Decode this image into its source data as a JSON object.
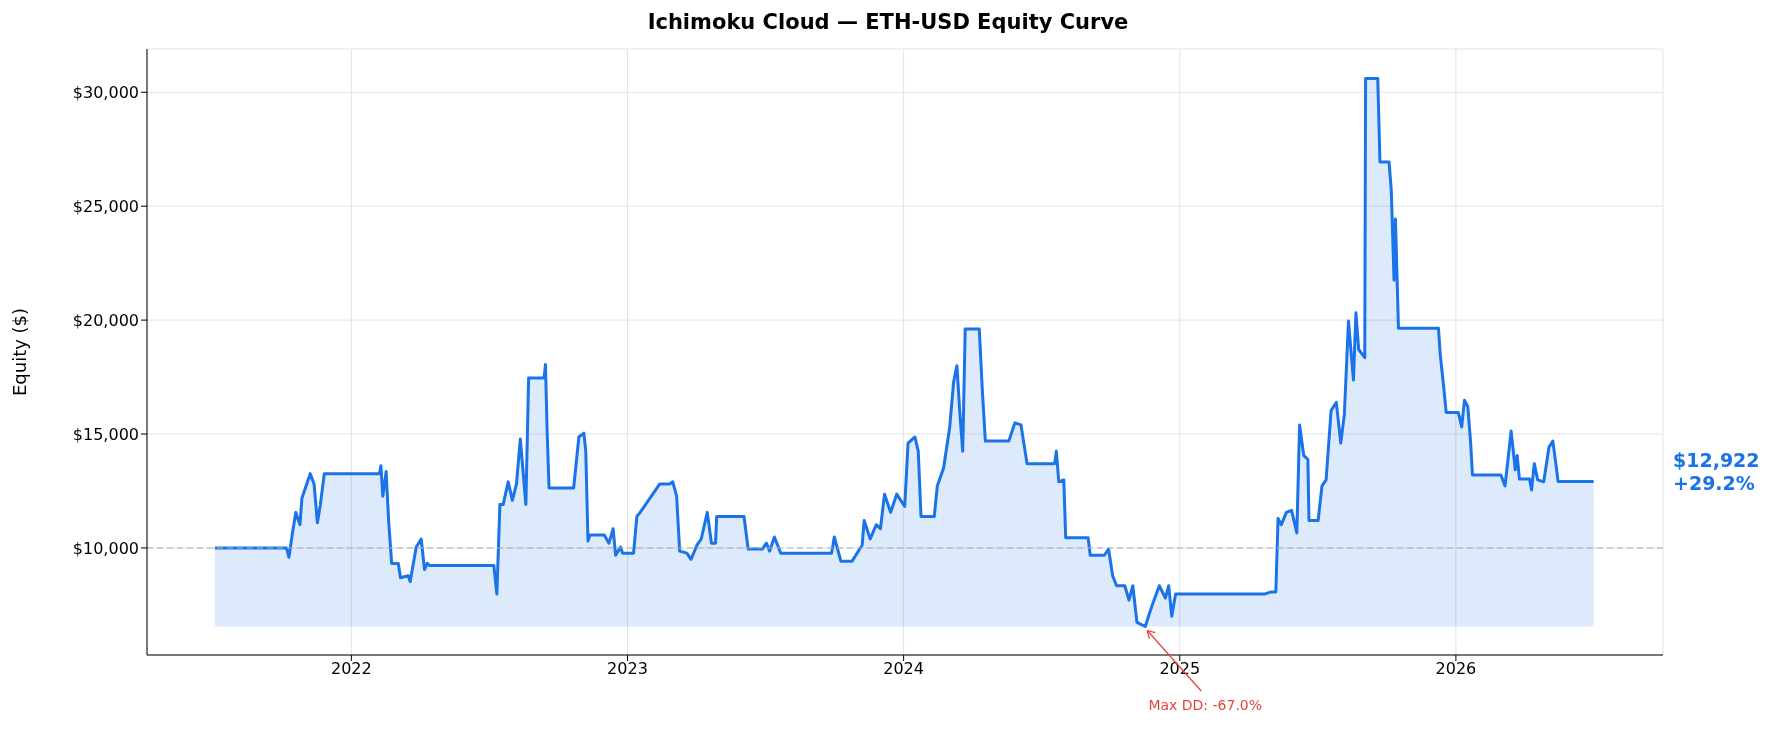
{
  "chart_data": {
    "type": "area",
    "title": "Ichimoku Cloud — ETH-USD Equity Curve",
    "ylabel": "Equity ($)",
    "x": [
      2021.506,
      2021.765,
      2021.774,
      2021.788,
      2021.799,
      2021.814,
      2021.821,
      2021.836,
      2021.851,
      2021.865,
      2021.877,
      2021.888,
      2021.902,
      2022.102,
      2022.107,
      2022.114,
      2022.126,
      2022.135,
      2022.146,
      2022.17,
      2022.178,
      2022.206,
      2022.213,
      2022.235,
      2022.253,
      2022.265,
      2022.275,
      2022.283,
      2022.516,
      2022.527,
      2022.538,
      2022.55,
      2022.568,
      2022.583,
      2022.598,
      2022.612,
      2022.632,
      2022.642,
      2022.698,
      2022.703,
      2022.709,
      2022.716,
      2022.805,
      2022.824,
      2022.842,
      2022.849,
      2022.857,
      2022.864,
      2022.916,
      2022.933,
      2022.948,
      2022.957,
      2022.975,
      2022.982,
      2023.022,
      2023.034,
      2023.046,
      2023.117,
      2023.152,
      2023.164,
      2023.178,
      2023.189,
      2023.215,
      2023.23,
      2023.252,
      2023.267,
      2023.289,
      2023.304,
      2023.319,
      2023.323,
      2023.422,
      2023.437,
      2023.488,
      2023.503,
      2023.515,
      2023.532,
      2023.555,
      2023.739,
      2023.749,
      2023.773,
      2023.813,
      2023.85,
      2023.857,
      2023.879,
      2023.901,
      2023.916,
      2023.931,
      2023.953,
      2023.975,
      2024.004,
      2024.016,
      2024.041,
      2024.053,
      2024.063,
      2024.111,
      2024.122,
      2024.145,
      2024.167,
      2024.181,
      2024.193,
      2024.204,
      2024.214,
      2024.223,
      2024.274,
      2024.285,
      2024.296,
      2024.381,
      2024.403,
      2024.425,
      2024.447,
      2024.547,
      2024.553,
      2024.562,
      2024.58,
      2024.587,
      2024.668,
      2024.676,
      2024.727,
      2024.742,
      2024.757,
      2024.771,
      2024.801,
      2024.816,
      2024.83,
      2024.845,
      2024.875,
      2024.889,
      2024.904,
      2024.926,
      2024.948,
      2024.96,
      2024.971,
      2024.985,
      2025.0,
      2025.309,
      2025.331,
      2025.348,
      2025.356,
      2025.368,
      2025.386,
      2025.405,
      2025.424,
      2025.434,
      2025.449,
      2025.464,
      2025.468,
      2025.501,
      2025.515,
      2025.53,
      2025.548,
      2025.567,
      2025.583,
      2025.596,
      2025.611,
      2025.629,
      2025.638,
      2025.648,
      2025.67,
      2025.673,
      2025.717,
      2025.725,
      2025.758,
      2025.766,
      2025.776,
      2025.781,
      2025.792,
      2025.937,
      2025.943,
      2025.957,
      2025.965,
      2026.009,
      2026.021,
      2026.031,
      2026.043,
      2026.053,
      2026.06,
      2026.163,
      2026.178,
      2026.2,
      2026.215,
      2026.222,
      2026.23,
      2026.267,
      2026.274,
      2026.284,
      2026.296,
      2026.318,
      2026.337,
      2026.351,
      2026.362,
      2026.37,
      2026.499
    ],
    "series": [
      {
        "color": "#1a73e8",
        "values": [
          10000,
          10000,
          9590,
          10750,
          11560,
          11020,
          12180,
          12720,
          13260,
          12810,
          11110,
          11910,
          13260,
          13260,
          13610,
          12270,
          13350,
          11200,
          9320,
          9320,
          8690,
          8780,
          8520,
          10040,
          10390,
          9050,
          9320,
          9230,
          9230,
          7980,
          11910,
          11910,
          12900,
          12090,
          12810,
          14780,
          11910,
          17460,
          17460,
          18050,
          15130,
          12630,
          12630,
          14870,
          15040,
          14240,
          10300,
          10570,
          10570,
          10210,
          10840,
          9680,
          10040,
          9770,
          9770,
          11380,
          11560,
          12810,
          12810,
          12900,
          12270,
          9860,
          9770,
          9500,
          10130,
          10390,
          11560,
          10210,
          10210,
          11380,
          11380,
          9950,
          9950,
          10210,
          9860,
          10480,
          9770,
          9770,
          10480,
          9410,
          9410,
          10130,
          11200,
          10390,
          11020,
          10840,
          12360,
          11560,
          12360,
          11820,
          14600,
          14870,
          14240,
          11380,
          11380,
          12720,
          13520,
          15310,
          17280,
          18000,
          15850,
          14240,
          19610,
          19610,
          16920,
          14690,
          14690,
          15490,
          15400,
          13700,
          13700,
          14240,
          12900,
          12990,
          10450,
          10450,
          9680,
          9680,
          9950,
          8780,
          8340,
          8340,
          7710,
          8340,
          6730,
          6550,
          7080,
          7620,
          8340,
          7800,
          8340,
          7000,
          7980,
          7980,
          7980,
          8070,
          8070,
          11290,
          11020,
          11560,
          11650,
          10660,
          15400,
          14060,
          13880,
          11200,
          11200,
          12720,
          12990,
          16030,
          16390,
          14600,
          15850,
          19960,
          17370,
          20320,
          18710,
          18350,
          30610,
          30610,
          26940,
          26940,
          25690,
          21750,
          24440,
          19640,
          19640,
          18530,
          16920,
          15940,
          15940,
          15310,
          16480,
          16210,
          14690,
          13200,
          13200,
          12720,
          15130,
          13430,
          14060,
          13020,
          13020,
          12540,
          13700,
          12990,
          12900,
          14420,
          14690,
          13700,
          12920,
          12920
        ]
      }
    ],
    "xlim": [
      2021.26,
      2026.75
    ],
    "xticks": [
      2022,
      2023,
      2024,
      2025,
      2026
    ],
    "ylim": [
      5300,
      31900
    ],
    "yticks": [
      {
        "value": 10000,
        "label": "$10,000"
      },
      {
        "value": 15000,
        "label": "$15,000"
      },
      {
        "value": 20000,
        "label": "$20,000"
      },
      {
        "value": 25000,
        "label": "$25,000"
      },
      {
        "value": 30000,
        "label": "$30,000"
      }
    ],
    "ref_lines": [
      {
        "axis": "y",
        "value": 10000,
        "color": "#b0b0b0",
        "line_style": "dashed"
      }
    ],
    "annotations": [
      {
        "text": "Max DD: -67.0%",
        "x": 2024.875,
        "y": 6550
      },
      "$12,922\n+29.2%"
    ],
    "grid": true,
    "marker": "none",
    "line_style": "solid"
  }
}
